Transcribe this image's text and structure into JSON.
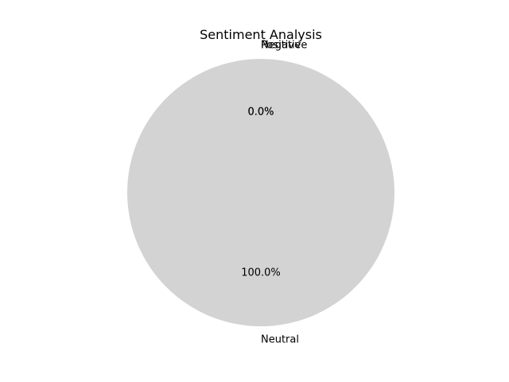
{
  "chart_data": {
    "type": "pie",
    "title": "Sentiment Analysis",
    "slices": [
      {
        "label": "Positive",
        "value": 0.0,
        "percent_label": "0.0%",
        "color": "#90ee90"
      },
      {
        "label": "Negative",
        "value": 0.0,
        "percent_label": "0.0%",
        "color": "#f08080"
      },
      {
        "label": "Neutral",
        "value": 100.0,
        "percent_label": "100.0%",
        "color": "#d3d3d3"
      }
    ],
    "legend": "none"
  }
}
